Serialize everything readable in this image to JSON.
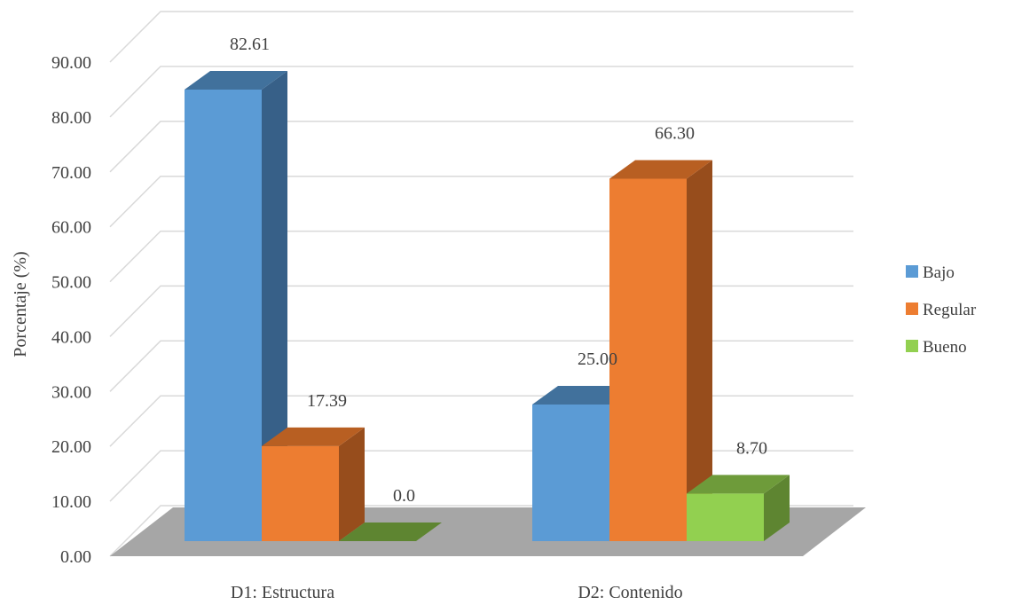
{
  "chart_data": {
    "type": "bar",
    "style": "3d-clustered-column",
    "categories": [
      "D1: Estructura",
      "D2: Contenido"
    ],
    "series": [
      {
        "name": "Bajo",
        "values": [
          82.61,
          25.0
        ],
        "labels": [
          "82.61",
          "25.00"
        ],
        "color": "#5B9BD5",
        "side_color": "#376088",
        "top_color": "#41719C"
      },
      {
        "name": "Regular",
        "values": [
          17.39,
          66.3
        ],
        "labels": [
          "17.39",
          "66.30"
        ],
        "color": "#ED7D31",
        "side_color": "#974D1C",
        "top_color": "#B85F22"
      },
      {
        "name": "Bueno",
        "values": [
          0.0,
          8.7
        ],
        "labels": [
          "0.0",
          "8.70"
        ],
        "color": "#92D050",
        "side_color": "#5E8531",
        "top_color": "#6E9B3A"
      }
    ],
    "ylabel": "Porcentaje (%)",
    "xlabel": "",
    "ylim": [
      0,
      90
    ],
    "yticks": [
      "0.00",
      "10.00",
      "20.00",
      "30.00",
      "40.00",
      "50.00",
      "60.00",
      "70.00",
      "80.00",
      "90.00"
    ],
    "grid": true,
    "legend_position": "right",
    "floor_color": "#A6A6A6"
  }
}
